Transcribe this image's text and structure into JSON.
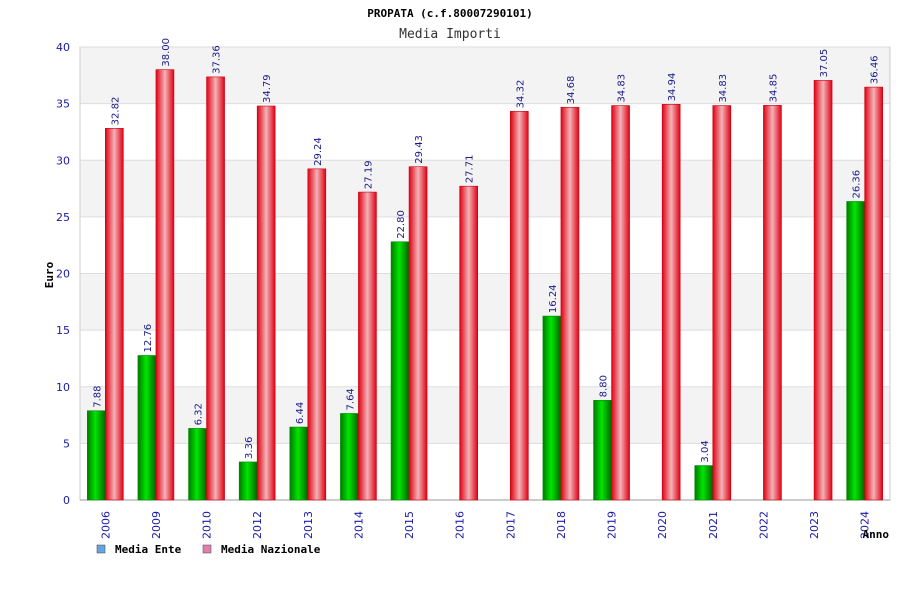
{
  "chart_data": {
    "type": "bar",
    "title": "PROPATA (c.f.80007290101)",
    "subtitle": "Media Importi",
    "ylabel": "Euro",
    "xlabel": "Anno",
    "ylim": [
      0,
      40
    ],
    "yticks": [
      0,
      5,
      10,
      15,
      20,
      25,
      30,
      35,
      40
    ],
    "categories": [
      "2006",
      "2009",
      "2010",
      "2012",
      "2013",
      "2014",
      "2015",
      "2016",
      "2017",
      "2018",
      "2019",
      "2020",
      "2021",
      "2022",
      "2023",
      "2024"
    ],
    "series": [
      {
        "name": "Media Ente",
        "color": "#00b400",
        "legend_color": "#66a3e0",
        "values": [
          7.88,
          12.76,
          6.32,
          3.36,
          6.44,
          7.64,
          22.8,
          null,
          null,
          16.24,
          8.8,
          null,
          3.04,
          null,
          null,
          26.36
        ],
        "labels": [
          "7.88",
          "12.76",
          "6.32",
          "3.36",
          "6.44",
          "7.64",
          "22.80",
          null,
          null,
          "16.24",
          "8.80",
          null,
          "3.04",
          null,
          null,
          "26.36"
        ]
      },
      {
        "name": "Media Nazionale",
        "color": "#e8101e",
        "legend_color": "#e07fb0",
        "values": [
          32.82,
          38.0,
          37.36,
          34.79,
          29.24,
          27.19,
          29.43,
          27.71,
          34.32,
          34.68,
          34.83,
          34.94,
          34.83,
          34.85,
          37.05,
          36.46
        ],
        "labels": [
          "32.82",
          "38.00",
          "37.36",
          "34.79",
          "29.24",
          "27.19",
          "29.43",
          "27.71",
          "34.32",
          "34.68",
          "34.83",
          "34.94",
          "34.83",
          "34.85",
          "37.05",
          "36.46"
        ]
      }
    ],
    "grid": true,
    "legend_position": "bottom-left"
  }
}
